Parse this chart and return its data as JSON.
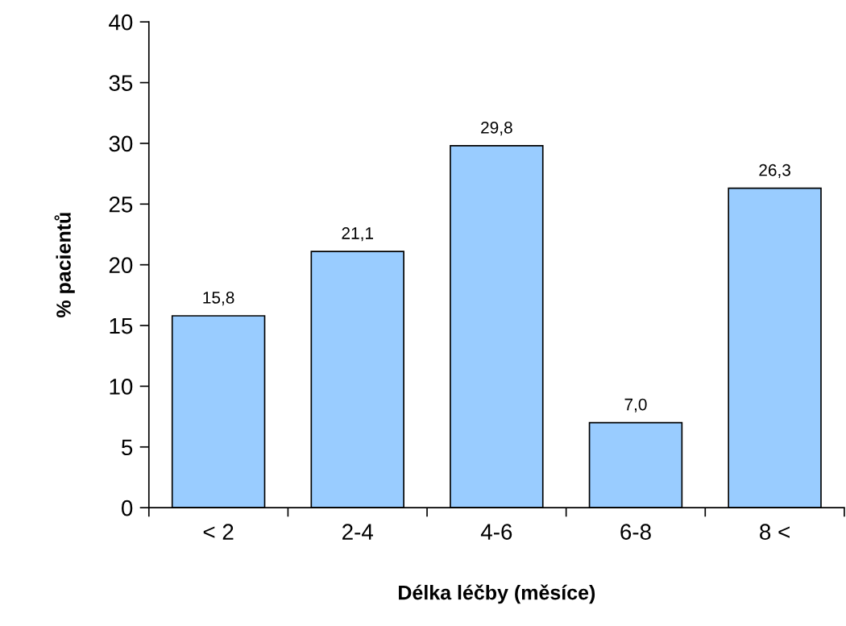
{
  "chart_data": {
    "type": "bar",
    "xlabel": "Délka léčby (měsíce)",
    "ylabel": "% pacientů",
    "categories": [
      "< 2",
      "2-4",
      "4-6",
      "6-8",
      "8 <"
    ],
    "values": [
      15.8,
      21.1,
      29.8,
      7.0,
      26.3
    ],
    "value_labels": [
      "15,8",
      "21,1",
      "29,8",
      "7,0",
      "26,3"
    ],
    "color": "#99ccff",
    "ylim": [
      0,
      40
    ],
    "yticks": [
      0,
      5,
      10,
      15,
      20,
      25,
      30,
      35,
      40
    ],
    "grid": false,
    "legend": false
  }
}
